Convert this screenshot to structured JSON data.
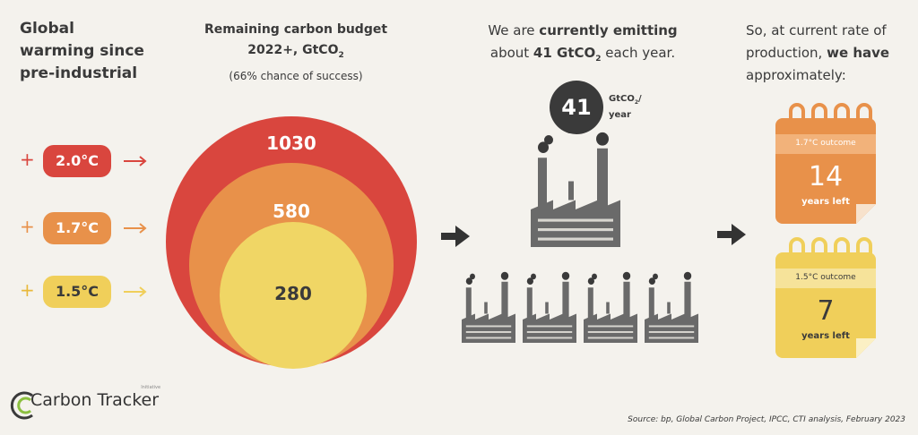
{
  "intro": {
    "lines": [
      "Global",
      "warming since",
      "pre-industrial"
    ]
  },
  "scenarios": {
    "plus": "+",
    "labels": [
      "2.0°C",
      "1.7°C",
      "1.5°C"
    ]
  },
  "budget": {
    "title_line1": "Remaining carbon budget",
    "title_line2": "2022+, GtCO",
    "subscript": "2",
    "subtitle": "(66% chance of success)",
    "values": [
      "1030",
      "580",
      "280"
    ]
  },
  "emissions": {
    "text_start": "We are ",
    "text_bold": "currently emitting",
    "text_mid": "about ",
    "text_bold2": "41 GtCO",
    "subscript": "2",
    "text_end": " each year.",
    "badge_value": "41",
    "badge_unit": "GtCO",
    "badge_sub": "2",
    "badge_slash": "/",
    "badge_per": "year"
  },
  "result": {
    "text_start": "So, at current rate of production, ",
    "text_bold": "we have",
    "text_end": " approximately:"
  },
  "calendars": [
    {
      "outcome": "1.7°C outcome",
      "years": "14",
      "unit": "years left"
    },
    {
      "outcome": "1.5°C outcome",
      "years": "7",
      "unit": "years left"
    }
  ],
  "logo": {
    "name": "Carbon Tracker",
    "tag": "Initiative"
  },
  "source": "Source: bp, Global Carbon Project, IPCC, CTI analysis, February 2023"
}
